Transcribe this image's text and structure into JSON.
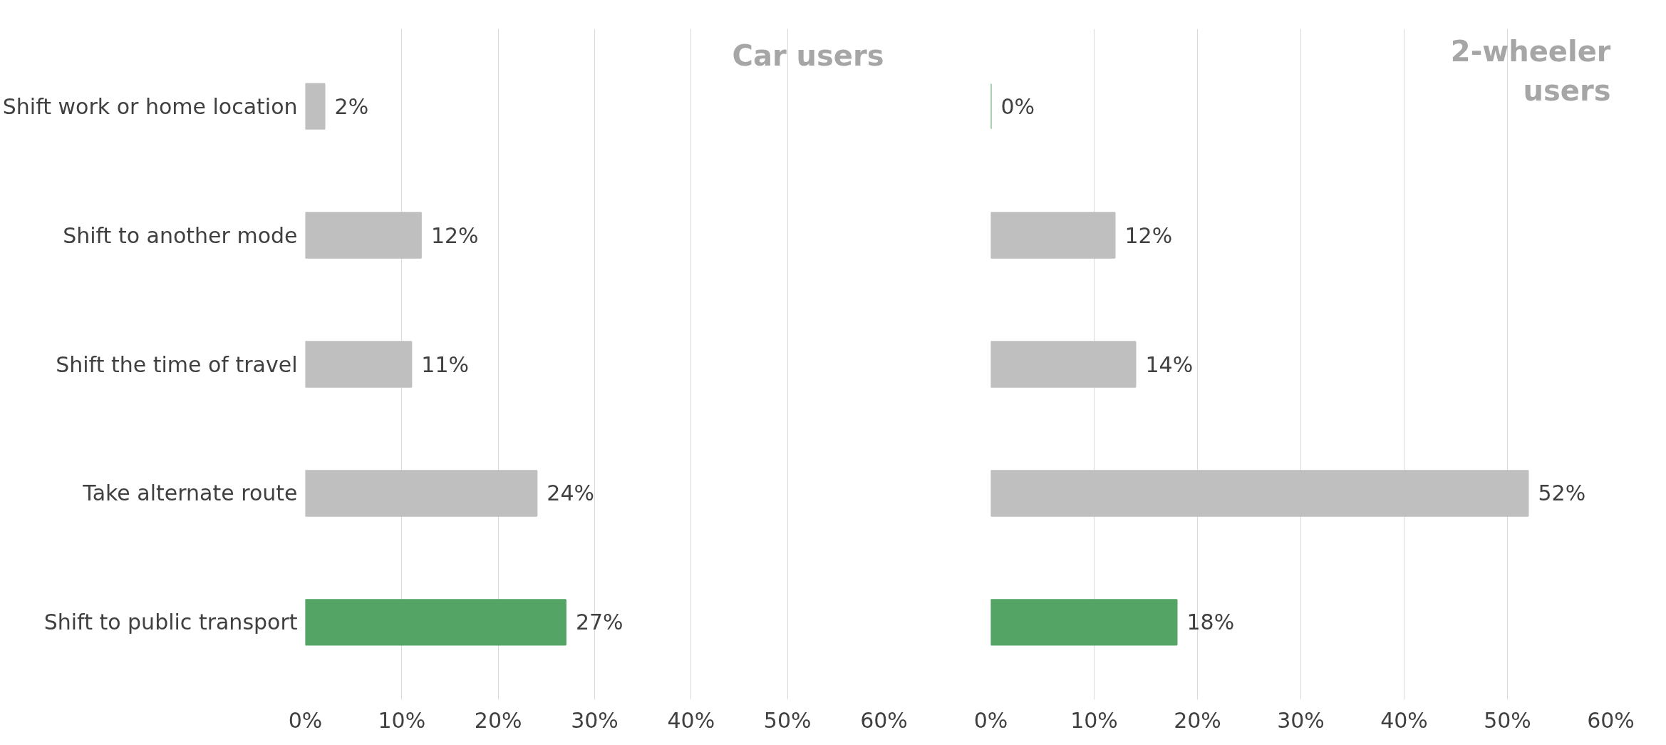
{
  "chart_data": [
    {
      "type": "bar",
      "orientation": "horizontal",
      "title": "Car users",
      "grid": "x",
      "categories": [
        "Shift work or home location",
        "Shift to another mode",
        "Shift the time of travel",
        "Take alternate route",
        "Shift to public transport"
      ],
      "values": [
        2,
        12,
        11,
        24,
        27
      ],
      "colors": [
        "#bfbfbf",
        "#bfbfbf",
        "#bfbfbf",
        "#bfbfbf",
        "#53a465"
      ],
      "value_labels": [
        "2%",
        "12%",
        "11%",
        "24%",
        "27%"
      ],
      "xlim": [
        0,
        60
      ],
      "xticks": [
        {
          "value": 0,
          "label": "0%"
        },
        {
          "value": 10,
          "label": "10%"
        },
        {
          "value": 20,
          "label": "20%"
        },
        {
          "value": 30,
          "label": "30%"
        },
        {
          "value": 40,
          "label": "40%"
        },
        {
          "value": 50,
          "label": "50%"
        },
        {
          "value": 60,
          "label": "60%"
        }
      ]
    },
    {
      "type": "bar",
      "orientation": "horizontal",
      "title": "2-wheeler\nusers",
      "grid": "x",
      "tick_labels": "x",
      "categories": [
        null,
        null,
        null,
        null,
        null
      ],
      "values": [
        0,
        12,
        14,
        52,
        18
      ],
      "colors": [
        "#53a465",
        "#bfbfbf",
        "#bfbfbf",
        "#bfbfbf",
        "#53a465"
      ],
      "value_labels": [
        "0%",
        "12%",
        "14%",
        "52%",
        "18%"
      ],
      "xlim": [
        0,
        60
      ],
      "xticks": [
        {
          "value": 0,
          "label": "0%"
        },
        {
          "value": 10,
          "label": "10%"
        },
        {
          "value": 20,
          "label": "20%"
        },
        {
          "value": 30,
          "label": "30%"
        },
        {
          "value": 40,
          "label": "40%"
        },
        {
          "value": 50,
          "label": "50%"
        },
        {
          "value": 60,
          "label": "60%"
        }
      ]
    }
  ]
}
